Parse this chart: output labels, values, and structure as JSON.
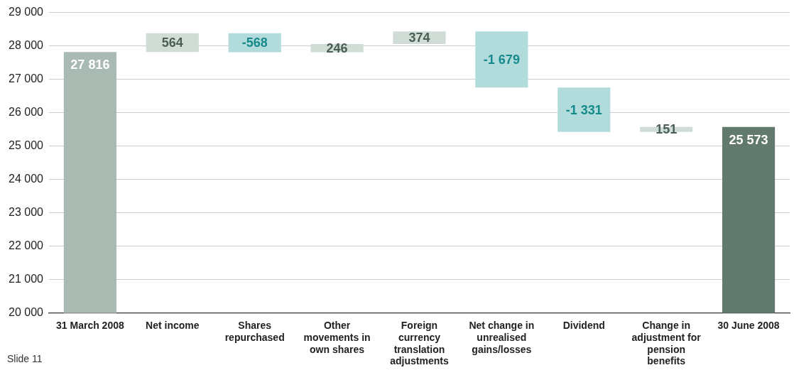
{
  "chart_data": {
    "type": "bar",
    "categories": [
      "31 March 2008",
      "Net income",
      "Shares repurchased",
      "Other movements in own shares",
      "Foreign currency translation adjustments",
      "Net change in unrealised gains/losses",
      "Dividend",
      "Change in adjustment for pension benefits",
      "30 June 2008"
    ],
    "values": [
      27816,
      564,
      -568,
      246,
      374,
      -1679,
      -1331,
      151,
      25573
    ],
    "base": [
      null,
      27816,
      28380,
      27812,
      28058,
      28432,
      26753,
      25422,
      null
    ],
    "colors": [
      "#a9bab3",
      "#d0dcd6",
      "#b2dcdc",
      "#d0dcd6",
      "#d0dcd6",
      "#b2dcdc",
      "#b2dcdc",
      "#d0dcd6",
      "#62796d"
    ],
    "value_labels": [
      "27 816",
      "564",
      "-568",
      "246",
      "374",
      "-1 679",
      "-1 331",
      "151",
      "25 573"
    ],
    "ylim": [
      20000,
      29000
    ],
    "yticks": [
      {
        "value": 20000,
        "label": "20 000"
      },
      {
        "value": 21000,
        "label": "21 000"
      },
      {
        "value": 22000,
        "label": "22 000"
      },
      {
        "value": 23000,
        "label": "23 000"
      },
      {
        "value": 24000,
        "label": "24 000"
      },
      {
        "value": 25000,
        "label": "25 000"
      },
      {
        "value": 26000,
        "label": "26 000"
      },
      {
        "value": 27000,
        "label": "27 000"
      },
      {
        "value": 28000,
        "label": "28 000"
      },
      {
        "value": 29000,
        "label": "29 000"
      }
    ],
    "grid": "y",
    "legend": false,
    "annotations": [
      "Slide 11"
    ]
  }
}
